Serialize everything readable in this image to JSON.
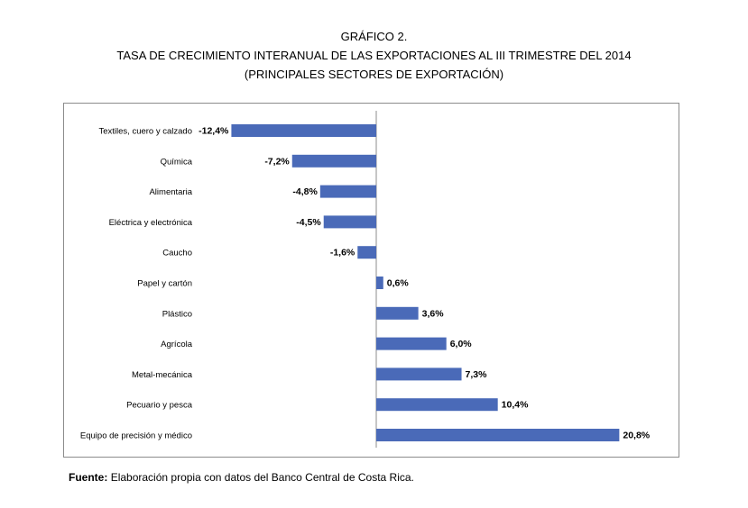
{
  "figure": {
    "number_title": "GRÁFICO 2.",
    "title": "TASA DE CRECIMIENTO INTERANUAL DE LAS EXPORTACIONES AL III TRIMESTRE DEL 2014",
    "subtitle": "(PRINCIPALES SECTORES DE EXPORTACIÓN)"
  },
  "source": {
    "label": "Fuente:",
    "text": "Elaboración propia con datos del Banco Central de Costa Rica."
  },
  "chart_data": {
    "type": "bar",
    "orientation": "horizontal",
    "bar_color": "#4a6ab8",
    "categories": [
      "Textiles, cuero y calzado",
      "Química",
      "Alimentaria",
      "Eléctrica y electrónica",
      "Caucho",
      "Papel y cartón",
      "Plástico",
      "Agrícola",
      "Metal-mecánica",
      "Pecuario y pesca",
      "Equipo de precisión y médico"
    ],
    "values": [
      -12.4,
      -7.2,
      -4.8,
      -4.5,
      -1.6,
      0.6,
      3.6,
      6.0,
      7.3,
      10.4,
      20.8
    ],
    "data_labels": [
      "-12,4%",
      "-7,2%",
      "-4,8%",
      "-4,5%",
      "-1,6%",
      "0,6%",
      "3,6%",
      "6,0%",
      "7,3%",
      "10,4%",
      "20,8%"
    ],
    "unit": "%",
    "grid": false,
    "legend": "none"
  }
}
